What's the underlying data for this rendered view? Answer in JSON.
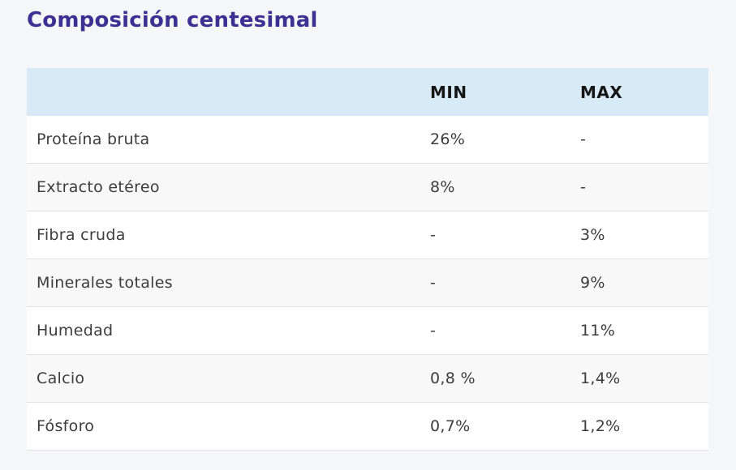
{
  "page": {
    "title": "Composición centesimal",
    "colors": {
      "background": "#F5F6F7",
      "title": "#3E3092",
      "header_background": "#D7EAF6",
      "row_alt_background": "#F8F8F8",
      "row_border": "#E2E2E2",
      "body_text": "#3C3C3C",
      "header_text": "#161616"
    }
  },
  "table": {
    "header": {
      "label": "",
      "min": "MIN",
      "max": "MAX"
    },
    "rows": [
      {
        "label": "Proteína bruta",
        "min": "26%",
        "max": "-"
      },
      {
        "label": "Extracto etéreo",
        "min": "8%",
        "max": "-"
      },
      {
        "label": "Fibra cruda",
        "min": "-",
        "max": "3%"
      },
      {
        "label": "Minerales totales",
        "min": "-",
        "max": "9%"
      },
      {
        "label": "Humedad",
        "min": "-",
        "max": "11%"
      },
      {
        "label": "Calcio",
        "min": "0,8 %",
        "max": "1,4%"
      },
      {
        "label": "Fósforo",
        "min": "0,7%",
        "max": "1,2%"
      }
    ]
  }
}
